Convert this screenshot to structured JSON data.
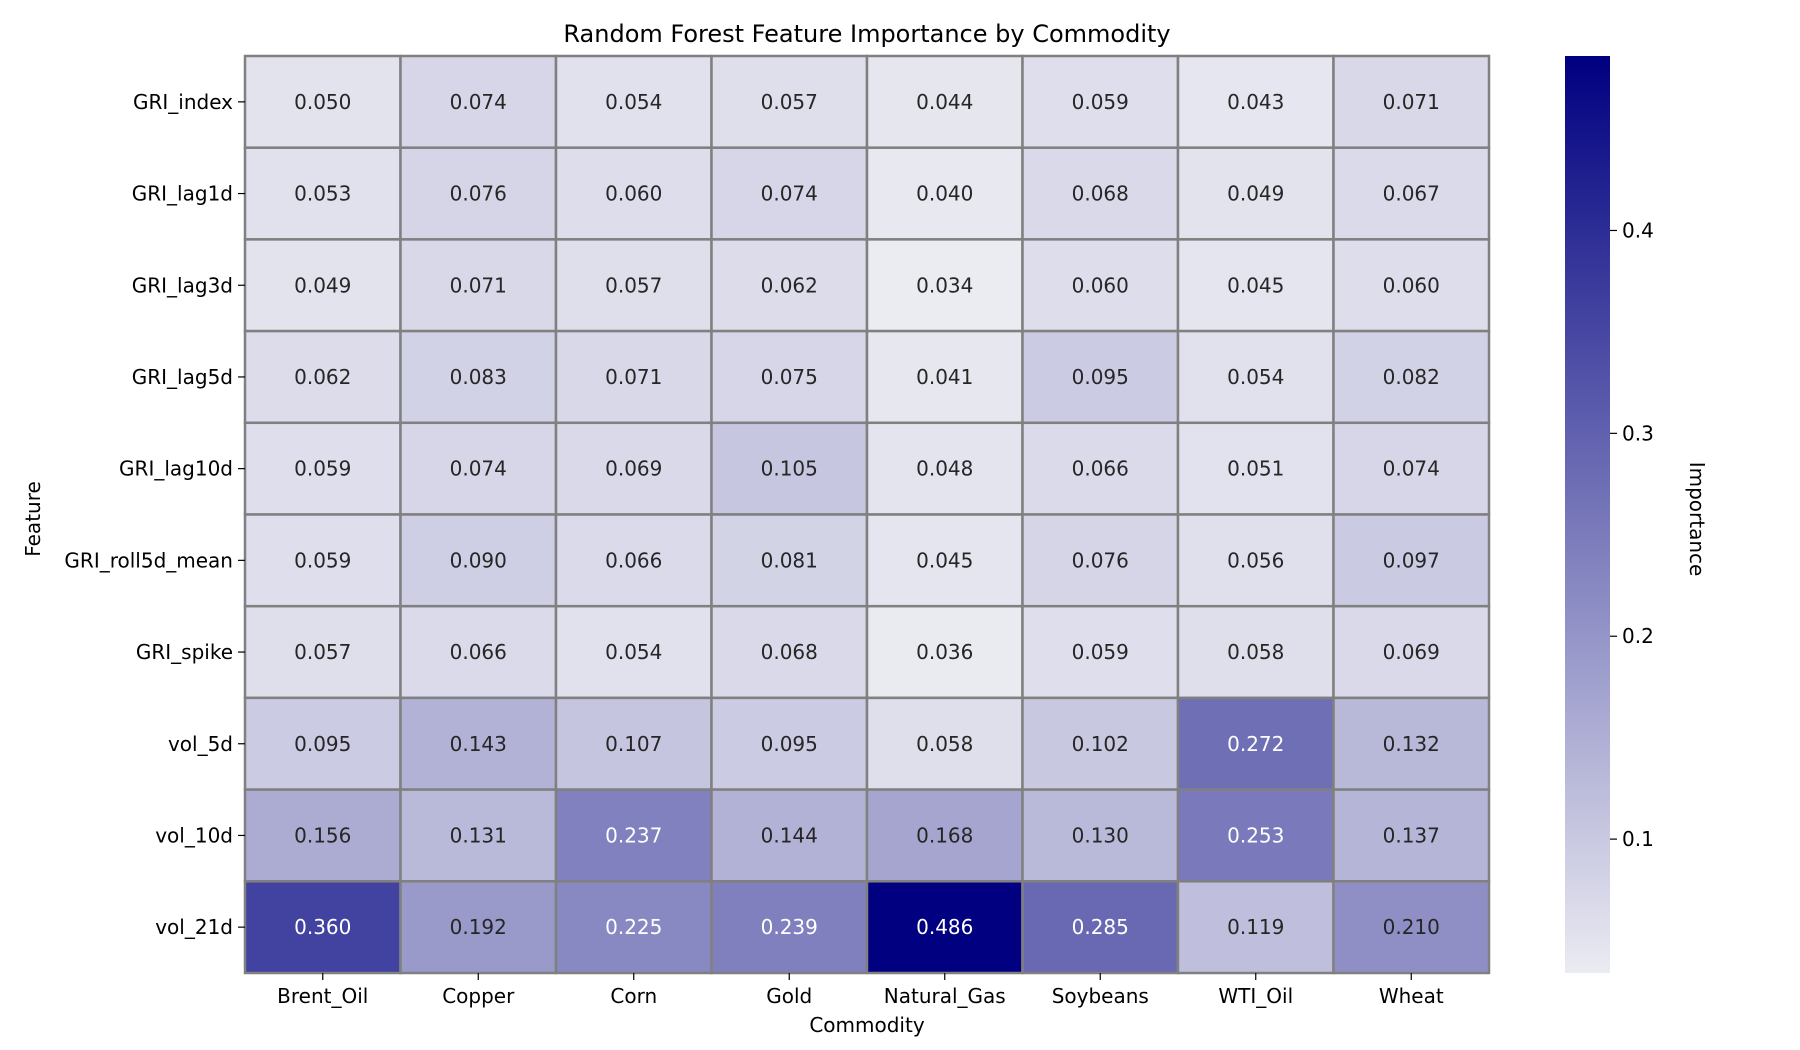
{
  "chart_data": {
    "type": "heatmap",
    "title": "Random Forest Feature Importance by Commodity",
    "xlabel": "Commodity",
    "ylabel": "Feature",
    "colorbar_label": "Importance",
    "colorbar_ticks": [
      0.1,
      0.2,
      0.3,
      0.4
    ],
    "color_range": [
      0.034,
      0.486
    ],
    "colormap": [
      "#ebebf2",
      "#000080"
    ],
    "cell_border_color": "#808080",
    "columns": [
      "Brent_Oil",
      "Copper",
      "Corn",
      "Gold",
      "Natural_Gas",
      "Soybeans",
      "WTI_Oil",
      "Wheat"
    ],
    "rows": [
      "GRI_index",
      "GRI_lag1d",
      "GRI_lag3d",
      "GRI_lag5d",
      "GRI_lag10d",
      "GRI_roll5d_mean",
      "GRI_spike",
      "vol_5d",
      "vol_10d",
      "vol_21d"
    ],
    "values": [
      [
        "0.050",
        "0.074",
        "0.054",
        "0.057",
        "0.044",
        "0.059",
        "0.043",
        "0.071"
      ],
      [
        "0.053",
        "0.076",
        "0.060",
        "0.074",
        "0.040",
        "0.068",
        "0.049",
        "0.067"
      ],
      [
        "0.049",
        "0.071",
        "0.057",
        "0.062",
        "0.034",
        "0.060",
        "0.045",
        "0.060"
      ],
      [
        "0.062",
        "0.083",
        "0.071",
        "0.075",
        "0.041",
        "0.095",
        "0.054",
        "0.082"
      ],
      [
        "0.059",
        "0.074",
        "0.069",
        "0.105",
        "0.048",
        "0.066",
        "0.051",
        "0.074"
      ],
      [
        "0.059",
        "0.090",
        "0.066",
        "0.081",
        "0.045",
        "0.076",
        "0.056",
        "0.097"
      ],
      [
        "0.057",
        "0.066",
        "0.054",
        "0.068",
        "0.036",
        "0.059",
        "0.058",
        "0.069"
      ],
      [
        "0.095",
        "0.143",
        "0.107",
        "0.095",
        "0.058",
        "0.102",
        "0.272",
        "0.132"
      ],
      [
        "0.156",
        "0.131",
        "0.237",
        "0.144",
        "0.168",
        "0.130",
        "0.253",
        "0.137"
      ],
      [
        "0.360",
        "0.192",
        "0.225",
        "0.239",
        "0.486",
        "0.285",
        "0.119",
        "0.210"
      ]
    ]
  }
}
